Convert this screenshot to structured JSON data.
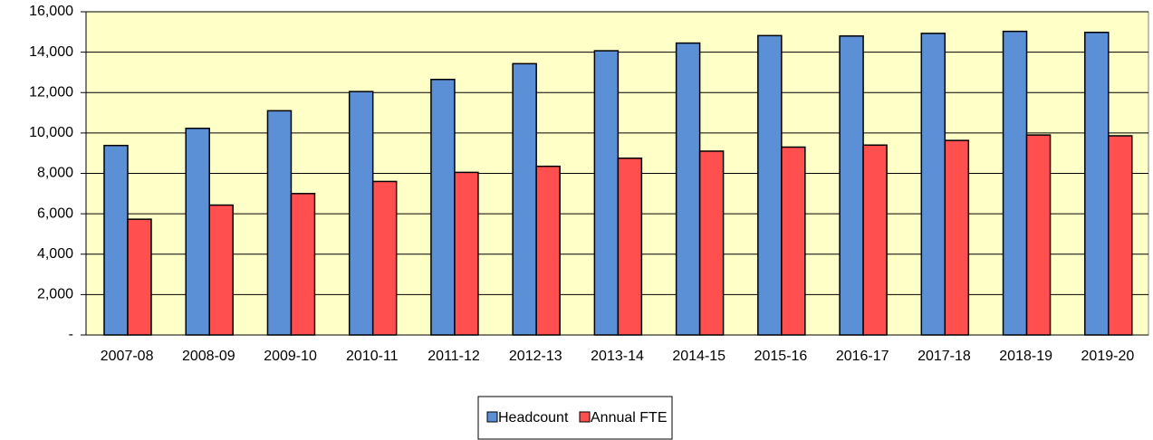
{
  "chart_data": {
    "type": "bar",
    "categories": [
      "2007-08",
      "2008-09",
      "2009-10",
      "2010-11",
      "2011-12",
      "2012-13",
      "2013-14",
      "2014-15",
      "2015-16",
      "2016-17",
      "2017-18",
      "2018-19",
      "2019-20"
    ],
    "series": [
      {
        "name": "Headcount",
        "color": "#5b8fd6",
        "values": [
          9380,
          10230,
          11100,
          12050,
          12650,
          13430,
          14070,
          14450,
          14820,
          14800,
          14930,
          15030,
          14980
        ]
      },
      {
        "name": "Annual FTE",
        "color": "#ff4f4f",
        "values": [
          5730,
          6430,
          7000,
          7600,
          8050,
          8350,
          8750,
          9100,
          9300,
          9400,
          9630,
          9900,
          9860
        ]
      }
    ],
    "ylim": [
      0,
      16000
    ],
    "yticks": [
      {
        "value": 0,
        "label": "-"
      },
      {
        "value": 2000,
        "label": "2,000"
      },
      {
        "value": 4000,
        "label": "4,000"
      },
      {
        "value": 6000,
        "label": "6,000"
      },
      {
        "value": 8000,
        "label": "8,000"
      },
      {
        "value": 10000,
        "label": "10,000"
      },
      {
        "value": 12000,
        "label": "12,000"
      },
      {
        "value": 14000,
        "label": "14,000"
      },
      {
        "value": 16000,
        "label": "16,000"
      }
    ],
    "grid": true,
    "legend": "bottom"
  }
}
